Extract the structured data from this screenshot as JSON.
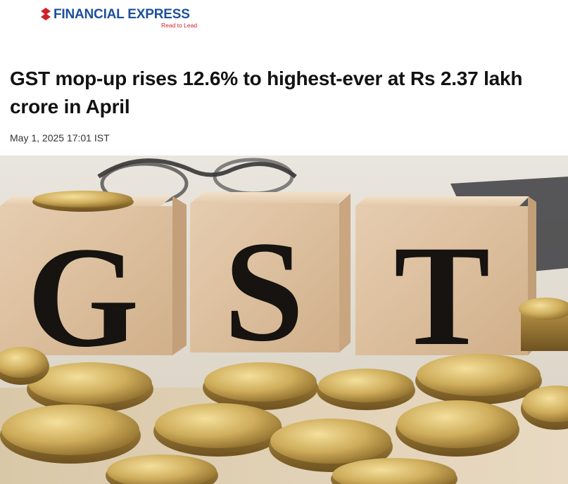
{
  "site": {
    "name": "FINANCIAL EXPRESS",
    "tagline": "Read to Lead",
    "brand_color": "#1d4f9c",
    "accent_color": "#d11f2b",
    "logo_icon": "fe-mark-icon"
  },
  "article": {
    "headline": "GST mop-up rises 12.6% to highest-ever at Rs 2.37 lakh crore in April",
    "dateline": "May 1, 2025 17:01 IST"
  },
  "hero_image": {
    "letters": [
      "G",
      "S",
      "T"
    ]
  }
}
